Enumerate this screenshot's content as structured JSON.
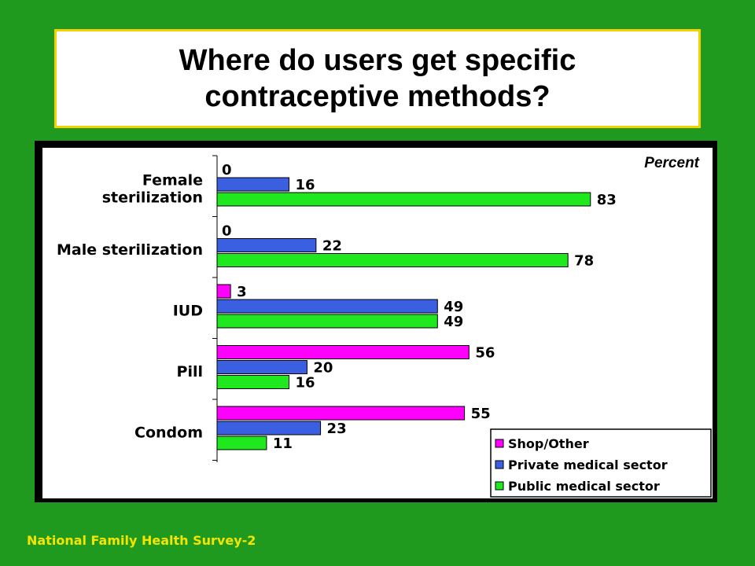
{
  "title_line1": "Where do users get specific",
  "title_line2": "contraceptive methods?",
  "footer": "National Family Health Survey-2",
  "chart_data": {
    "type": "bar",
    "orientation": "horizontal",
    "unit_label": "Percent",
    "categories": [
      "Female sterilization",
      "Male sterilization",
      "IUD",
      "Pill",
      "Condom"
    ],
    "category_label_lines": [
      [
        "Female",
        "sterilization"
      ],
      [
        "Male sterilization"
      ],
      [
        "IUD"
      ],
      [
        "Pill"
      ],
      [
        "Condom"
      ]
    ],
    "series": [
      {
        "name": "Shop/Other",
        "color": "#ff00ff",
        "values": [
          0,
          0,
          3,
          56,
          55
        ]
      },
      {
        "name": "Private medical sector",
        "color": "#3a5fe0",
        "values": [
          16,
          22,
          49,
          20,
          23
        ]
      },
      {
        "name": "Public medical sector",
        "color": "#1fe81f",
        "values": [
          83,
          78,
          49,
          16,
          11
        ]
      }
    ],
    "bar_visible": [
      [
        false,
        false,
        true,
        true,
        true
      ],
      [
        true,
        true,
        true,
        true,
        true
      ],
      [
        true,
        true,
        true,
        true,
        true
      ]
    ],
    "xlim": [
      0,
      100
    ],
    "grid": false,
    "legend_position": "bottom-right"
  }
}
